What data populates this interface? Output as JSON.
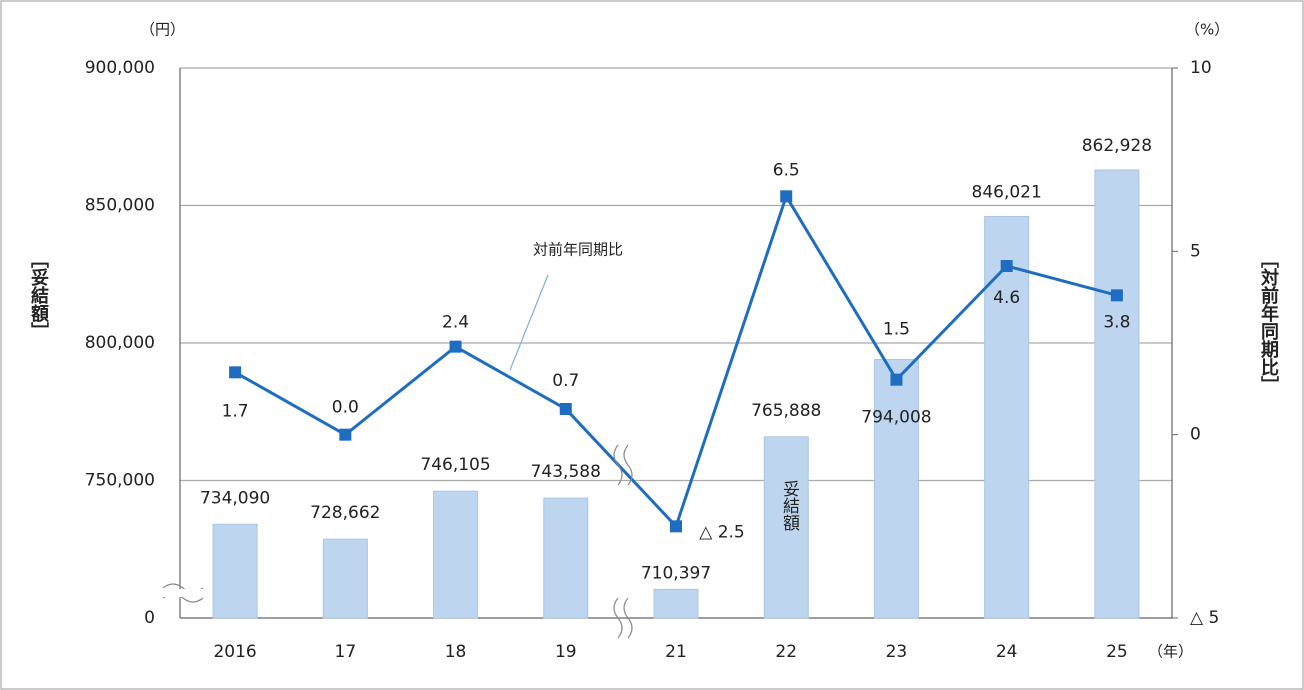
{
  "chart_data": {
    "type": "bar_line",
    "y_unit": "（円）",
    "y2_unit": "（%）",
    "x_unit": "（年）",
    "y_title": "［妥結額］",
    "y2_title": "［対前年同期比］",
    "annotations": [
      "対前年同期比",
      "妥結額"
    ],
    "categories": [
      "2016",
      "17",
      "18",
      "19",
      "21",
      "22",
      "23",
      "24",
      "25"
    ],
    "series": [
      {
        "name": "妥結額",
        "type": "bar",
        "color": "#bdd5ee",
        "values": [
          734090,
          728662,
          746105,
          743588,
          710397,
          765888,
          794008,
          846021,
          862928
        ],
        "value_labels": [
          "734,090",
          "728,662",
          "746,105",
          "743,588",
          "710,397",
          "765,888",
          "794,008",
          "846,021",
          "862,928"
        ]
      },
      {
        "name": "対前年同期比",
        "type": "line",
        "axis": "y2",
        "color": "#1f6dc1",
        "values": [
          1.7,
          0.0,
          2.4,
          0.7,
          -2.5,
          6.5,
          1.5,
          4.6,
          3.8
        ],
        "value_labels": [
          "1.7",
          "0.0",
          "2.4",
          "0.7",
          "△ 2.5",
          "6.5",
          "1.5",
          "4.6",
          "3.8"
        ]
      }
    ],
    "ylim": [
      0,
      900000
    ],
    "y_break": [
      0,
      700000
    ],
    "yticks": [
      {
        "value": 0,
        "label": "0"
      },
      {
        "value": 750000,
        "label": "750,000"
      },
      {
        "value": 800000,
        "label": "800,000"
      },
      {
        "value": 850000,
        "label": "850,000"
      },
      {
        "value": 900000,
        "label": "900,000"
      }
    ],
    "y2lim": [
      -5,
      10
    ],
    "y2ticks": [
      {
        "value": -5,
        "label": "△ 5"
      },
      0,
      5,
      10
    ],
    "grid": true
  }
}
